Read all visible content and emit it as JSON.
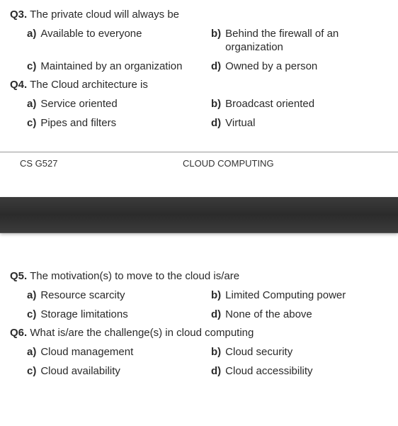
{
  "top": {
    "q3": {
      "number": "Q3.",
      "text": "The private cloud will always be",
      "options": {
        "a": "Available to everyone",
        "b": "Behind the firewall of an organization",
        "c": "Maintained by an organization",
        "d": "Owned by a person"
      }
    },
    "q4": {
      "number": "Q4.",
      "text": "The Cloud architecture is",
      "options": {
        "a": "Service oriented",
        "b": "Broadcast oriented",
        "c": "Pipes and filters",
        "d": "Virtual"
      }
    },
    "footer": {
      "course": "CS G527",
      "title": "CLOUD COMPUTING"
    }
  },
  "bottom": {
    "q5": {
      "number": "Q5.",
      "text": "The motivation(s) to move to the cloud is/are",
      "options": {
        "a": "Resource scarcity",
        "b": "Limited Computing power",
        "c": "Storage limitations",
        "d": "None of the above"
      }
    },
    "q6": {
      "number": "Q6.",
      "text": "What is/are the challenge(s) in cloud computing",
      "options": {
        "a": "Cloud management",
        "b": "Cloud security",
        "c": "Cloud availability",
        "d": "Cloud accessibility"
      }
    }
  },
  "labels": {
    "a": "a)",
    "b": "b)",
    "c": "c)",
    "d": "d)"
  }
}
